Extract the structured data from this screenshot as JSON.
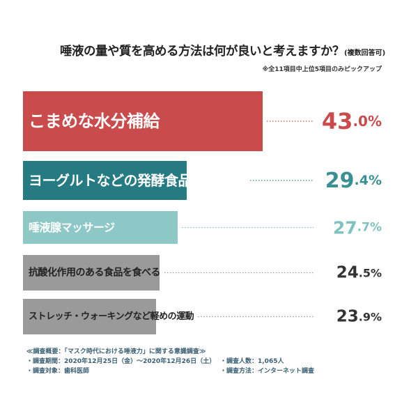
{
  "title": {
    "main": "唾液の量や質を高める方法は何が良いと考えますか？",
    "sub": "(複数回答可)",
    "note": "※全11項目中上位5項目のみピックアップ"
  },
  "colors": {
    "bar1": "#c94b4b",
    "bar2": "#267b82",
    "bar3": "#8dc8c6",
    "bar4": "#9a9a9a",
    "bar5": "#9a9a9a",
    "value1": "#c94b4b",
    "value2": "#3a8f95",
    "value3": "#7fc2bf",
    "value4": "#333333",
    "value5": "#333333"
  },
  "chart_data": {
    "type": "bar",
    "orientation": "horizontal",
    "title": "唾液の量や質を高める方法は何が良いと考えますか？",
    "unit": "%",
    "xlim": [
      0,
      43.0
    ],
    "categories": [
      "こまめな水分補給",
      "ヨーグルトなどの発酵食品を食べる",
      "唾液腺マッサージ",
      "抗酸化作用のある食品を食べる",
      "ストレッチ・ウォーキングなど軽めの運動"
    ],
    "values": [
      43.0,
      29.4,
      27.7,
      24.5,
      23.9
    ],
    "value_labels": [
      {
        "int": "43",
        "dec": ".0",
        "pct": "%"
      },
      {
        "int": "29",
        "dec": ".4",
        "pct": "%"
      },
      {
        "int": "27",
        "dec": ".7",
        "pct": "%"
      },
      {
        "int": "24",
        "dec": ".5",
        "pct": "%"
      },
      {
        "int": "23",
        "dec": ".9",
        "pct": "%"
      }
    ]
  },
  "footer": {
    "heading": "≪調査概要：「マスク時代における唾液力」に関する意識調査≫",
    "period": "・調査期間：2020年12月25日（金）～2020年12月26日（土）",
    "respondents": "・調査人数：1,065人",
    "target": "・調査対象：歯科医師",
    "method": "・調査方法：インターネット調査"
  }
}
